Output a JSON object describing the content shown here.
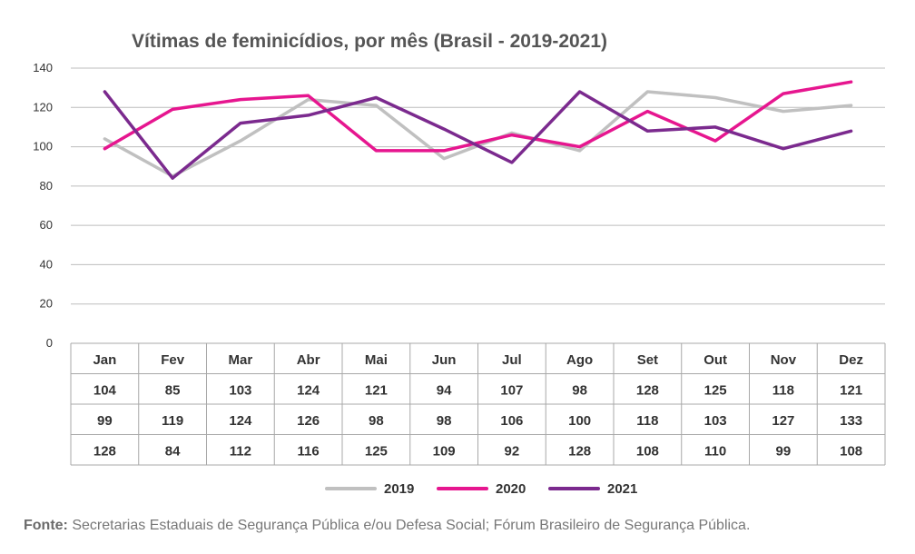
{
  "chart_data": {
    "type": "line",
    "title": "Vítimas de feminicídios, por mês (Brasil - 2019-2021)",
    "xlabel": "",
    "ylabel": "",
    "ylim": [
      0,
      140
    ],
    "yticks": [
      0,
      20,
      40,
      60,
      80,
      100,
      120,
      140
    ],
    "grid": true,
    "legend_position": "bottom",
    "categories": [
      "Jan",
      "Fev",
      "Mar",
      "Abr",
      "Mai",
      "Jun",
      "Jul",
      "Ago",
      "Set",
      "Out",
      "Nov",
      "Dez"
    ],
    "series": [
      {
        "name": "2019",
        "color": "#c0c0c0",
        "values": [
          104,
          85,
          103,
          124,
          121,
          94,
          107,
          98,
          128,
          125,
          118,
          121
        ]
      },
      {
        "name": "2020",
        "color": "#e6168f",
        "values": [
          99,
          119,
          124,
          126,
          98,
          98,
          106,
          100,
          118,
          103,
          127,
          133
        ]
      },
      {
        "name": "2021",
        "color": "#7b2a8e",
        "values": [
          128,
          84,
          112,
          116,
          125,
          109,
          92,
          128,
          108,
          110,
          99,
          108
        ]
      }
    ]
  },
  "source": {
    "label": "Fonte:",
    "text": " Secretarias Estaduais de Segurança Pública e/ou Defesa Social; Fórum Brasileiro de Segurança Pública."
  }
}
